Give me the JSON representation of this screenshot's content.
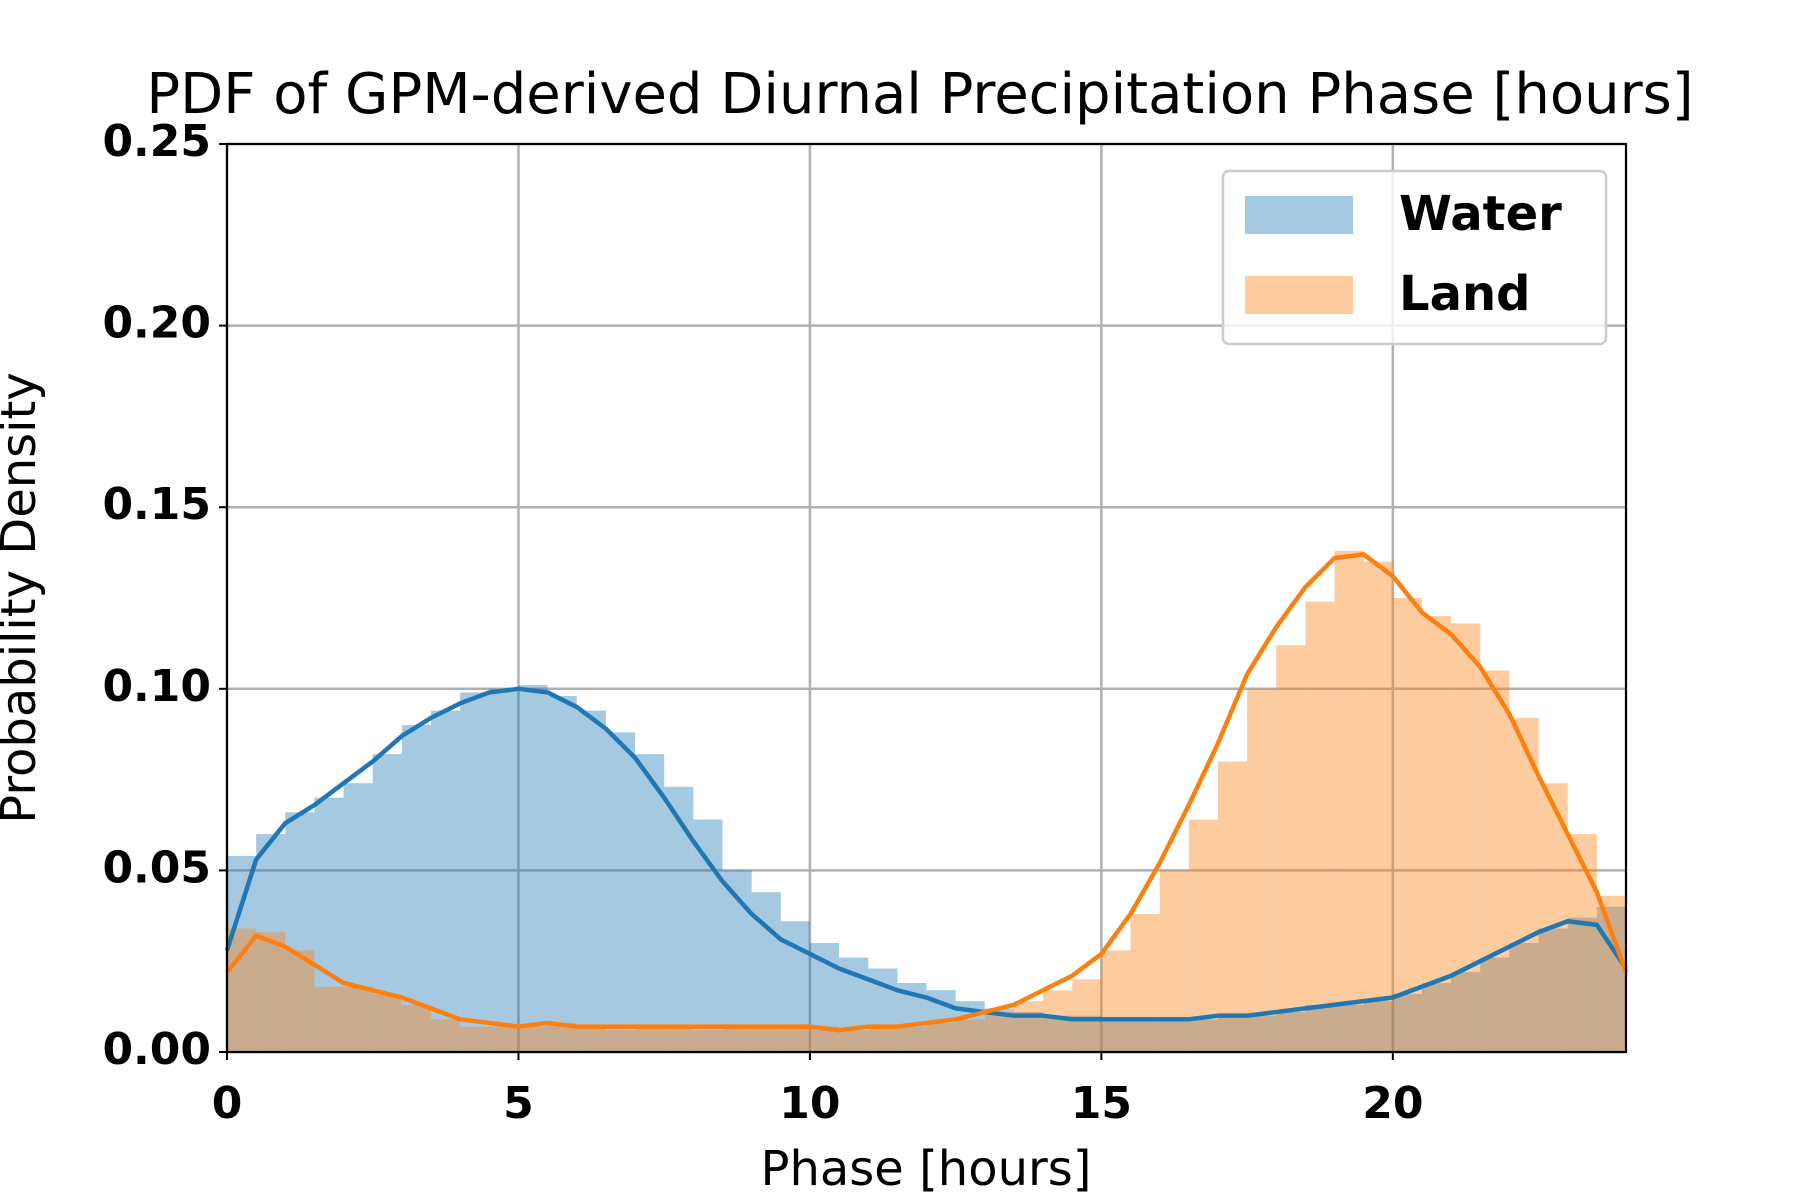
{
  "chart_data": {
    "type": "histogram",
    "title": "PDF of GPM-derived Diurnal Precipitation Phase [hours]",
    "xlabel": "Phase [hours]",
    "ylabel": "Probability Density",
    "bins": [
      0,
      0.5,
      1,
      1.5,
      2,
      2.5,
      3,
      3.5,
      4,
      4.5,
      5,
      5.5,
      6,
      6.5,
      7,
      7.5,
      8,
      8.5,
      9,
      9.5,
      10,
      10.5,
      11,
      11.5,
      12,
      12.5,
      13,
      13.5,
      14,
      14.5,
      15,
      15.5,
      16,
      16.5,
      17,
      17.5,
      18,
      18.5,
      19,
      19.5,
      20,
      20.5,
      21,
      21.5,
      22,
      22.5,
      23,
      23.5,
      24
    ],
    "kde_x": [
      0,
      0.5,
      1,
      1.5,
      2,
      2.5,
      3,
      3.5,
      4,
      4.5,
      5,
      5.5,
      6,
      6.5,
      7,
      7.5,
      8,
      8.5,
      9,
      9.5,
      10,
      10.5,
      11,
      11.5,
      12,
      12.5,
      13,
      13.5,
      14,
      14.5,
      15,
      15.5,
      16,
      16.5,
      17,
      17.5,
      18,
      18.5,
      19,
      19.5,
      20,
      20.5,
      21,
      21.5,
      22,
      22.5,
      23,
      23.5,
      24
    ],
    "series": [
      {
        "name": "Water",
        "color": "#1f77b4",
        "values": [
          0.054,
          0.06,
          0.066,
          0.07,
          0.074,
          0.082,
          0.09,
          0.094,
          0.099,
          0.1,
          0.101,
          0.098,
          0.094,
          0.088,
          0.082,
          0.073,
          0.064,
          0.05,
          0.044,
          0.036,
          0.03,
          0.026,
          0.023,
          0.019,
          0.017,
          0.014,
          0.012,
          0.011,
          0.01,
          0.01,
          0.009,
          0.009,
          0.009,
          0.009,
          0.01,
          0.01,
          0.011,
          0.013,
          0.013,
          0.014,
          0.016,
          0.019,
          0.022,
          0.026,
          0.03,
          0.034,
          0.037,
          0.04
        ],
        "kde": [
          0.028,
          0.053,
          0.063,
          0.068,
          0.074,
          0.08,
          0.087,
          0.092,
          0.096,
          0.099,
          0.1,
          0.099,
          0.095,
          0.089,
          0.081,
          0.07,
          0.058,
          0.047,
          0.038,
          0.031,
          0.027,
          0.023,
          0.02,
          0.017,
          0.015,
          0.012,
          0.011,
          0.01,
          0.01,
          0.009,
          0.009,
          0.009,
          0.009,
          0.009,
          0.01,
          0.01,
          0.011,
          0.012,
          0.013,
          0.014,
          0.015,
          0.018,
          0.021,
          0.025,
          0.029,
          0.033,
          0.036,
          0.035,
          0.023
        ]
      },
      {
        "name": "Land",
        "color": "#ff7f0e",
        "values": [
          0.034,
          0.033,
          0.028,
          0.018,
          0.018,
          0.016,
          0.013,
          0.009,
          0.007,
          0.007,
          0.007,
          0.008,
          0.007,
          0.006,
          0.007,
          0.007,
          0.006,
          0.007,
          0.007,
          0.007,
          0.007,
          0.006,
          0.007,
          0.007,
          0.008,
          0.009,
          0.011,
          0.014,
          0.017,
          0.02,
          0.028,
          0.038,
          0.05,
          0.064,
          0.08,
          0.1,
          0.112,
          0.124,
          0.138,
          0.135,
          0.125,
          0.12,
          0.118,
          0.105,
          0.092,
          0.074,
          0.06,
          0.043
        ],
        "kde": [
          0.022,
          0.032,
          0.029,
          0.024,
          0.019,
          0.017,
          0.015,
          0.012,
          0.009,
          0.008,
          0.007,
          0.008,
          0.007,
          0.007,
          0.007,
          0.007,
          0.007,
          0.007,
          0.007,
          0.007,
          0.007,
          0.006,
          0.007,
          0.007,
          0.008,
          0.009,
          0.011,
          0.013,
          0.017,
          0.021,
          0.027,
          0.038,
          0.052,
          0.068,
          0.085,
          0.104,
          0.117,
          0.128,
          0.136,
          0.137,
          0.131,
          0.121,
          0.115,
          0.106,
          0.093,
          0.076,
          0.06,
          0.044,
          0.022
        ]
      }
    ],
    "xlim": [
      0,
      24
    ],
    "xticks": [
      0,
      5,
      10,
      15,
      20
    ],
    "ylim": [
      0,
      0.25
    ],
    "yticks": [
      {
        "value": 0,
        "label": "0.00"
      },
      {
        "value": 0.05,
        "label": "0.05"
      },
      {
        "value": 0.1,
        "label": "0.10"
      },
      {
        "value": 0.15,
        "label": "0.15"
      },
      {
        "value": 0.2,
        "label": "0.20"
      },
      {
        "value": 0.25,
        "label": "0.25"
      }
    ],
    "grid": true,
    "legend": "upper right",
    "bar_opacity": 0.4
  }
}
